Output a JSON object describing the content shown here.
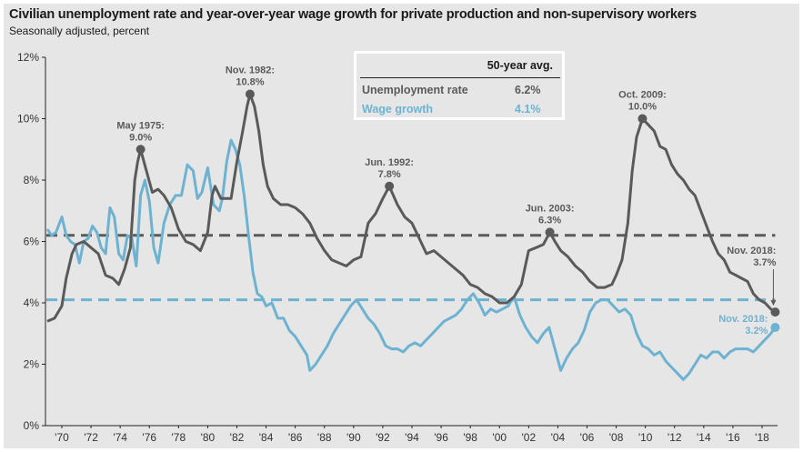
{
  "title": "Civilian unemployment rate and year-over-year wage growth for private production and non-supervisory workers",
  "subtitle": "Seasonally adjusted, percent",
  "legend": {
    "header": "50-year avg.",
    "rows": [
      {
        "label": "Unemployment rate",
        "value": "6.2%",
        "color": "#5a5a5a"
      },
      {
        "label": "Wage growth",
        "value": "4.1%",
        "color": "#6db3d1"
      }
    ]
  },
  "chart_data": {
    "type": "line",
    "title": "Civilian unemployment rate and year-over-year wage growth for private production and non-supervisory workers",
    "subtitle": "Seasonally adjusted, percent",
    "xlabel": "",
    "ylabel": "",
    "xlim": [
      1969,
      2019.2
    ],
    "ylim": [
      0,
      12
    ],
    "y_ticks": [
      0,
      2,
      4,
      6,
      8,
      10,
      12
    ],
    "y_tick_labels": [
      "0%",
      "2%",
      "4%",
      "6%",
      "8%",
      "10%",
      "12%"
    ],
    "x_ticks": [
      1970,
      1972,
      1974,
      1976,
      1978,
      1980,
      1982,
      1984,
      1986,
      1988,
      1990,
      1992,
      1994,
      1996,
      1998,
      2000,
      2002,
      2004,
      2006,
      2008,
      2010,
      2012,
      2014,
      2016,
      2018
    ],
    "x_tick_labels": [
      "'70",
      "'72",
      "'74",
      "'76",
      "'78",
      "'80",
      "'82",
      "'84",
      "'86",
      "'88",
      "'90",
      "'92",
      "'94",
      "'96",
      "'98",
      "'00",
      "'02",
      "'04",
      "'06",
      "'08",
      "'10",
      "'12",
      "'14",
      "'16",
      "'18"
    ],
    "grid": false,
    "series": [
      {
        "name": "Unemployment rate",
        "color": "#5a5a5a",
        "x": [
          1969.0,
          1969.5,
          1970.0,
          1970.3,
          1970.7,
          1971.0,
          1971.5,
          1972.0,
          1972.5,
          1973.0,
          1973.5,
          1973.9,
          1974.3,
          1974.7,
          1975.0,
          1975.2,
          1975.4,
          1975.8,
          1976.2,
          1976.6,
          1977.0,
          1977.5,
          1978.0,
          1978.5,
          1979.0,
          1979.5,
          1980.0,
          1980.3,
          1980.5,
          1980.9,
          1981.3,
          1981.6,
          1982.0,
          1982.4,
          1982.7,
          1982.9,
          1983.2,
          1983.5,
          1983.8,
          1984.1,
          1984.5,
          1985.0,
          1985.5,
          1986.0,
          1986.5,
          1987.0,
          1987.5,
          1988.0,
          1988.5,
          1989.0,
          1989.5,
          1990.0,
          1990.5,
          1991.0,
          1991.5,
          1992.0,
          1992.45,
          1993.0,
          1993.5,
          1994.0,
          1994.5,
          1995.0,
          1995.5,
          1996.0,
          1996.5,
          1997.0,
          1997.5,
          1998.0,
          1998.5,
          1999.0,
          1999.5,
          2000.0,
          2000.5,
          2001.0,
          2001.5,
          2002.0,
          2002.5,
          2003.0,
          2003.45,
          2003.8,
          2004.2,
          2004.7,
          2005.2,
          2005.7,
          2006.2,
          2006.7,
          2007.2,
          2007.7,
          2008.0,
          2008.4,
          2008.8,
          2009.1,
          2009.4,
          2009.8,
          2010.2,
          2010.6,
          2011.0,
          2011.4,
          2011.8,
          2012.2,
          2012.6,
          2013.0,
          2013.4,
          2013.8,
          2014.2,
          2014.6,
          2015.0,
          2015.4,
          2015.8,
          2016.2,
          2016.6,
          2017.0,
          2017.4,
          2017.8,
          2018.2,
          2018.6,
          2018.9
        ],
        "y": [
          3.4,
          3.5,
          3.9,
          4.8,
          5.6,
          5.9,
          6.0,
          5.8,
          5.6,
          4.9,
          4.8,
          4.6,
          5.1,
          5.8,
          8.0,
          8.6,
          9.0,
          8.3,
          7.6,
          7.7,
          7.5,
          7.1,
          6.4,
          6.0,
          5.9,
          5.7,
          6.3,
          7.5,
          7.8,
          7.4,
          7.4,
          7.4,
          8.6,
          9.6,
          10.4,
          10.8,
          10.4,
          9.6,
          8.5,
          7.8,
          7.4,
          7.2,
          7.2,
          7.1,
          6.9,
          6.6,
          6.1,
          5.7,
          5.4,
          5.3,
          5.2,
          5.4,
          5.5,
          6.6,
          6.9,
          7.4,
          7.8,
          7.2,
          6.8,
          6.6,
          6.1,
          5.6,
          5.7,
          5.5,
          5.3,
          5.1,
          4.9,
          4.6,
          4.5,
          4.3,
          4.2,
          4.0,
          4.0,
          4.2,
          4.6,
          5.7,
          5.8,
          5.9,
          6.3,
          6.0,
          5.7,
          5.5,
          5.2,
          5.0,
          4.7,
          4.5,
          4.5,
          4.6,
          4.9,
          5.4,
          6.6,
          8.3,
          9.4,
          10.0,
          9.8,
          9.6,
          9.1,
          9.0,
          8.5,
          8.2,
          8.0,
          7.7,
          7.5,
          7.0,
          6.5,
          6.0,
          5.6,
          5.4,
          5.0,
          4.9,
          4.8,
          4.7,
          4.3,
          4.1,
          4.0,
          3.8,
          3.7
        ],
        "annotations": [
          {
            "x": 1975.4,
            "y": 9.0,
            "text": [
              "May 1975:",
              "9.0%"
            ]
          },
          {
            "x": 1982.9,
            "y": 10.8,
            "text": [
              "Nov. 1982:",
              "10.8%"
            ]
          },
          {
            "x": 1992.45,
            "y": 7.8,
            "text": [
              "Jun. 1992:",
              "7.8%"
            ]
          },
          {
            "x": 2003.45,
            "y": 6.3,
            "text": [
              "Jun. 2003:",
              "6.3%"
            ]
          },
          {
            "x": 2009.8,
            "y": 10.0,
            "text": [
              "Oct. 2009:",
              "10.0%"
            ]
          },
          {
            "x": 2018.9,
            "y": 3.7,
            "text": [
              "Nov. 2018:",
              "3.7%"
            ]
          }
        ]
      },
      {
        "name": "Wage growth",
        "color": "#6db3d1",
        "x": [
          1969.0,
          1969.3,
          1969.6,
          1970.0,
          1970.3,
          1970.6,
          1970.9,
          1971.2,
          1971.5,
          1971.8,
          1972.1,
          1972.4,
          1972.7,
          1973.0,
          1973.3,
          1973.6,
          1973.9,
          1974.2,
          1974.5,
          1974.8,
          1975.1,
          1975.4,
          1975.7,
          1976.0,
          1976.3,
          1976.6,
          1977.0,
          1977.4,
          1977.8,
          1978.2,
          1978.6,
          1979.0,
          1979.3,
          1979.6,
          1980.0,
          1980.4,
          1980.8,
          1981.0,
          1981.3,
          1981.6,
          1981.9,
          1982.2,
          1982.5,
          1982.8,
          1983.1,
          1983.4,
          1983.7,
          1984.0,
          1984.4,
          1984.8,
          1985.2,
          1985.6,
          1986.0,
          1986.4,
          1986.8,
          1987.0,
          1987.4,
          1987.8,
          1988.2,
          1988.6,
          1989.0,
          1989.4,
          1989.8,
          1990.2,
          1990.6,
          1991.0,
          1991.4,
          1991.8,
          1992.2,
          1992.6,
          1993.0,
          1993.4,
          1993.8,
          1994.2,
          1994.6,
          1995.0,
          1995.4,
          1995.8,
          1996.2,
          1996.6,
          1997.0,
          1997.4,
          1997.8,
          1998.2,
          1998.6,
          1999.0,
          1999.4,
          1999.8,
          2000.2,
          2000.6,
          2001.0,
          2001.4,
          2001.8,
          2002.2,
          2002.6,
          2003.0,
          2003.4,
          2003.8,
          2004.2,
          2004.6,
          2005.0,
          2005.4,
          2005.8,
          2006.2,
          2006.6,
          2007.0,
          2007.4,
          2007.8,
          2008.2,
          2008.6,
          2009.0,
          2009.4,
          2009.8,
          2010.2,
          2010.6,
          2011.0,
          2011.4,
          2011.8,
          2012.2,
          2012.6,
          2013.0,
          2013.4,
          2013.8,
          2014.2,
          2014.6,
          2015.0,
          2015.4,
          2015.8,
          2016.2,
          2016.6,
          2017.0,
          2017.4,
          2017.8,
          2018.2,
          2018.6,
          2018.9
        ],
        "y": [
          6.4,
          6.2,
          6.3,
          6.8,
          6.2,
          6.0,
          5.9,
          5.3,
          6.0,
          6.1,
          6.5,
          6.3,
          5.8,
          5.6,
          7.1,
          6.8,
          5.6,
          5.4,
          6.2,
          6.1,
          5.2,
          7.5,
          8.0,
          7.3,
          5.8,
          5.3,
          6.6,
          7.2,
          7.5,
          7.5,
          8.5,
          8.3,
          7.4,
          7.6,
          8.4,
          7.2,
          7.0,
          7.4,
          8.6,
          9.3,
          9.0,
          8.5,
          7.5,
          6.2,
          5.0,
          4.3,
          4.2,
          3.9,
          4.0,
          3.5,
          3.5,
          3.1,
          2.9,
          2.6,
          2.3,
          1.8,
          2.0,
          2.3,
          2.6,
          3.0,
          3.3,
          3.6,
          3.9,
          4.1,
          3.8,
          3.5,
          3.3,
          3.0,
          2.6,
          2.5,
          2.5,
          2.4,
          2.6,
          2.7,
          2.6,
          2.8,
          3.0,
          3.2,
          3.4,
          3.5,
          3.6,
          3.8,
          4.1,
          4.3,
          4.0,
          3.6,
          3.8,
          3.7,
          3.8,
          3.9,
          4.2,
          3.6,
          3.2,
          2.9,
          2.7,
          3.0,
          3.2,
          2.5,
          1.8,
          2.2,
          2.5,
          2.7,
          3.1,
          3.7,
          4.0,
          4.1,
          4.1,
          3.9,
          3.7,
          3.8,
          3.6,
          3.0,
          2.6,
          2.5,
          2.3,
          2.4,
          2.1,
          1.9,
          1.7,
          1.5,
          1.7,
          2.0,
          2.3,
          2.2,
          2.4,
          2.4,
          2.2,
          2.4,
          2.5,
          2.5,
          2.5,
          2.4,
          2.6,
          2.8,
          3.0,
          3.2
        ],
        "annotations": [
          {
            "x": 2018.9,
            "y": 3.2,
            "text": [
              "Nov. 2018:",
              "3.2%"
            ]
          }
        ]
      }
    ],
    "reference_lines": [
      {
        "name": "Unemployment 50-year avg.",
        "y": 6.2,
        "color": "#5a5a5a",
        "style": "dashed"
      },
      {
        "name": "Wage growth 50-year avg.",
        "y": 4.1,
        "color": "#6db3d1",
        "style": "dashed"
      }
    ],
    "legend_position": "top-center"
  }
}
